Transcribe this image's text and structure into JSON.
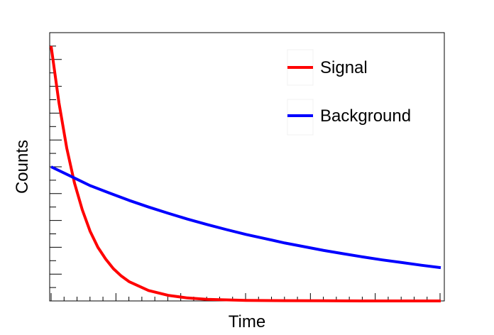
{
  "chart_data": {
    "type": "line",
    "xlabel": "Time",
    "ylabel": "Counts",
    "xlim": [
      0,
      100
    ],
    "ylim": [
      0,
      100
    ],
    "grid": false,
    "legend_position": "top-right",
    "series": [
      {
        "name": "Signal",
        "color": "#ff0000",
        "x": [
          0,
          2,
          4,
          6,
          8,
          10,
          12,
          14,
          16,
          18,
          20,
          25,
          30,
          35,
          40,
          50,
          60,
          70,
          80,
          90,
          100
        ],
        "y": [
          95,
          74,
          57,
          44,
          34,
          26,
          20,
          15.6,
          12,
          9.3,
          7.2,
          3.9,
          2.1,
          1.1,
          0.6,
          0.2,
          0.1,
          0.05,
          0,
          0,
          0
        ]
      },
      {
        "name": "Background",
        "color": "#0000ff",
        "x": [
          0,
          5,
          10,
          15,
          20,
          25,
          30,
          35,
          40,
          45,
          50,
          55,
          60,
          65,
          70,
          75,
          80,
          85,
          90,
          95,
          100
        ],
        "y": [
          50,
          46.5,
          43,
          40.2,
          37.5,
          35,
          32.7,
          30.5,
          28.5,
          26.6,
          24.8,
          23.2,
          21.6,
          20.2,
          18.8,
          17.6,
          16.4,
          15.3,
          14.3,
          13.3,
          12.4
        ]
      }
    ]
  }
}
